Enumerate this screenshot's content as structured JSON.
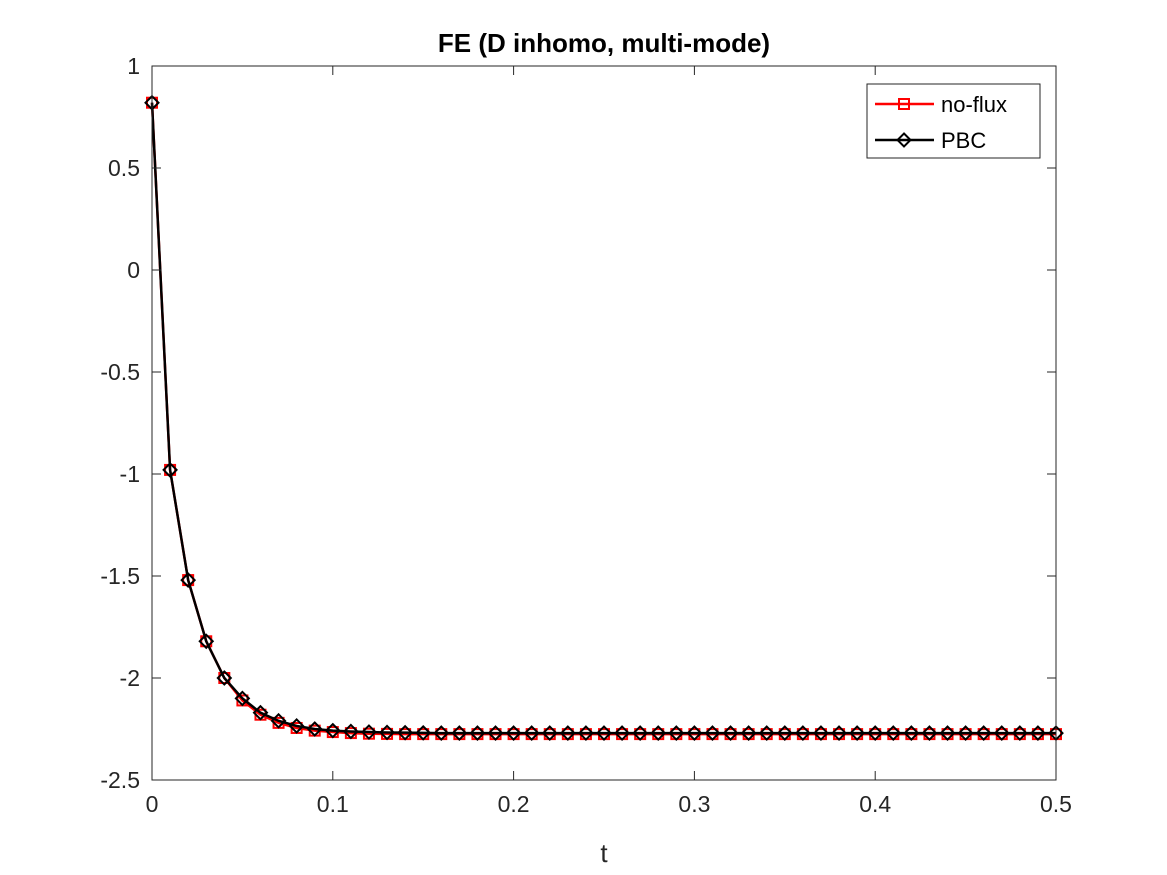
{
  "chart_data": {
    "type": "line",
    "title": "FE (D inhomo, multi-mode)",
    "xlabel": "t",
    "ylabel": "",
    "xlim": [
      0,
      0.5
    ],
    "ylim": [
      -2.5,
      1
    ],
    "xticks": [
      0,
      0.1,
      0.2,
      0.3,
      0.4,
      0.5
    ],
    "xtick_labels": [
      "0",
      "0.1",
      "0.2",
      "0.3",
      "0.4",
      "0.5"
    ],
    "yticks": [
      1,
      0.5,
      0,
      -0.5,
      -1,
      -1.5,
      -2,
      -2.5
    ],
    "ytick_labels": [
      "1",
      "0.5",
      "0",
      "-0.5",
      "-1",
      "-1.5",
      "-2",
      "-2.5"
    ],
    "grid": false,
    "legend_position": "top-right",
    "x": [
      0,
      0.01,
      0.02,
      0.03,
      0.04,
      0.05,
      0.06,
      0.07,
      0.08,
      0.09,
      0.1,
      0.11,
      0.12,
      0.13,
      0.14,
      0.15,
      0.16,
      0.17,
      0.18,
      0.19,
      0.2,
      0.21,
      0.22,
      0.23,
      0.24,
      0.25,
      0.26,
      0.27,
      0.28,
      0.29,
      0.3,
      0.31,
      0.32,
      0.33,
      0.34,
      0.35,
      0.36,
      0.37,
      0.38,
      0.39,
      0.4,
      0.41,
      0.42,
      0.43,
      0.44,
      0.45,
      0.46,
      0.47,
      0.48,
      0.49,
      0.5
    ],
    "series": [
      {
        "name": "no-flux",
        "color": "#ff0000",
        "marker": "square",
        "values": [
          0.82,
          -0.98,
          -1.52,
          -1.82,
          -2.0,
          -2.11,
          -2.18,
          -2.22,
          -2.245,
          -2.258,
          -2.265,
          -2.27,
          -2.273,
          -2.274,
          -2.275,
          -2.275,
          -2.275,
          -2.275,
          -2.275,
          -2.275,
          -2.275,
          -2.275,
          -2.275,
          -2.275,
          -2.275,
          -2.275,
          -2.275,
          -2.275,
          -2.275,
          -2.275,
          -2.275,
          -2.275,
          -2.275,
          -2.275,
          -2.275,
          -2.275,
          -2.275,
          -2.275,
          -2.275,
          -2.275,
          -2.275,
          -2.275,
          -2.275,
          -2.275,
          -2.275,
          -2.275,
          -2.275,
          -2.275,
          -2.275,
          -2.275,
          -2.275
        ]
      },
      {
        "name": "PBC",
        "color": "#000000",
        "marker": "diamond",
        "values": [
          0.82,
          -0.98,
          -1.52,
          -1.82,
          -2.0,
          -2.1,
          -2.17,
          -2.21,
          -2.235,
          -2.25,
          -2.258,
          -2.262,
          -2.265,
          -2.267,
          -2.268,
          -2.269,
          -2.27,
          -2.27,
          -2.27,
          -2.27,
          -2.27,
          -2.27,
          -2.27,
          -2.27,
          -2.27,
          -2.27,
          -2.27,
          -2.27,
          -2.27,
          -2.27,
          -2.27,
          -2.27,
          -2.27,
          -2.27,
          -2.27,
          -2.27,
          -2.27,
          -2.27,
          -2.27,
          -2.27,
          -2.27,
          -2.27,
          -2.27,
          -2.27,
          -2.27,
          -2.27,
          -2.27,
          -2.27,
          -2.27,
          -2.27,
          -2.27
        ]
      }
    ]
  }
}
